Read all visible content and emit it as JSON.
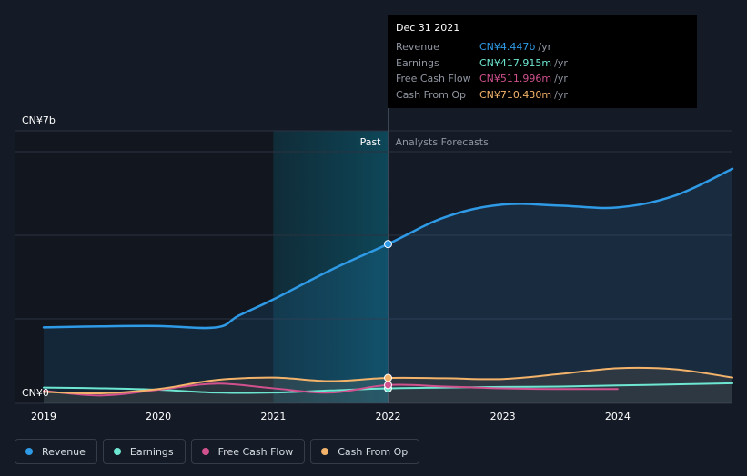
{
  "tooltip": {
    "date": "Dec 31 2021",
    "rows": [
      {
        "label": "Revenue",
        "value": "CN¥4.447b",
        "unit": "/yr",
        "color": "#2f9ae6"
      },
      {
        "label": "Earnings",
        "value": "CN¥417.915m",
        "unit": "/yr",
        "color": "#6ee7d2"
      },
      {
        "label": "Free Cash Flow",
        "value": "CN¥511.996m",
        "unit": "/yr",
        "color": "#d0518e"
      },
      {
        "label": "Cash From Op",
        "value": "CN¥710.430m",
        "unit": "/yr",
        "color": "#f3b36a"
      }
    ]
  },
  "legend": [
    {
      "label": "Revenue",
      "color": "#2f9ae6"
    },
    {
      "label": "Earnings",
      "color": "#6ee7d2"
    },
    {
      "label": "Free Cash Flow",
      "color": "#d0518e"
    },
    {
      "label": "Cash From Op",
      "color": "#f3b36a"
    }
  ],
  "chart_data": {
    "type": "line",
    "title": "",
    "y_unit_label_top": "CN¥7b",
    "y_unit_label_bottom": "CN¥0",
    "ylim": [
      0,
      7
    ],
    "xlim": [
      2019,
      2025
    ],
    "x_ticks": [
      "2019",
      "2020",
      "2021",
      "2022",
      "2023",
      "2024"
    ],
    "x_tick_values": [
      2019,
      2020,
      2021,
      2022,
      2023,
      2024
    ],
    "divider_x": 2022,
    "past_label": "Past",
    "forecast_label": "Analysts Forecasts",
    "highlight_range": [
      2021,
      2022
    ],
    "series": [
      {
        "name": "Revenue",
        "color": "#2f9ae6",
        "area": true,
        "x": [
          2019.0,
          2019.5,
          2020.0,
          2020.5,
          2020.7,
          2021.0,
          2021.5,
          2022.0,
          2022.5,
          2023.0,
          2023.5,
          2024.0,
          2024.5,
          2025.0
        ],
        "y": [
          2.12,
          2.15,
          2.16,
          2.12,
          2.45,
          2.9,
          3.72,
          4.447,
          5.2,
          5.55,
          5.52,
          5.47,
          5.8,
          6.55
        ],
        "marker_x": 2022.0
      },
      {
        "name": "Earnings",
        "color": "#6ee7d2",
        "area": false,
        "x": [
          2019.0,
          2019.5,
          2020.0,
          2020.5,
          2021.0,
          2021.5,
          2022.0,
          2022.5,
          2023.0,
          2023.5,
          2024.0,
          2024.5,
          2025.0
        ],
        "y": [
          0.44,
          0.42,
          0.38,
          0.3,
          0.3,
          0.36,
          0.418,
          0.44,
          0.46,
          0.47,
          0.5,
          0.53,
          0.56
        ],
        "marker_x": 2022.0
      },
      {
        "name": "Free Cash Flow",
        "color": "#d0518e",
        "area": false,
        "x": [
          2019.0,
          2019.5,
          2020.0,
          2020.5,
          2021.0,
          2021.5,
          2022.0,
          2022.5,
          2023.0,
          2023.5,
          2024.0
        ],
        "y": [
          0.35,
          0.22,
          0.38,
          0.55,
          0.42,
          0.3,
          0.512,
          0.47,
          0.42,
          0.4,
          0.4
        ],
        "marker_x": 2022.0
      },
      {
        "name": "Cash From Op",
        "color": "#f3b36a",
        "area": true,
        "x": [
          2019.0,
          2019.5,
          2020.0,
          2020.5,
          2021.0,
          2021.5,
          2022.0,
          2022.5,
          2023.0,
          2023.5,
          2024.0,
          2024.5,
          2025.0
        ],
        "y": [
          0.32,
          0.28,
          0.4,
          0.65,
          0.72,
          0.62,
          0.71,
          0.7,
          0.68,
          0.82,
          0.98,
          0.95,
          0.72
        ],
        "marker_x": 2022.0
      }
    ]
  }
}
